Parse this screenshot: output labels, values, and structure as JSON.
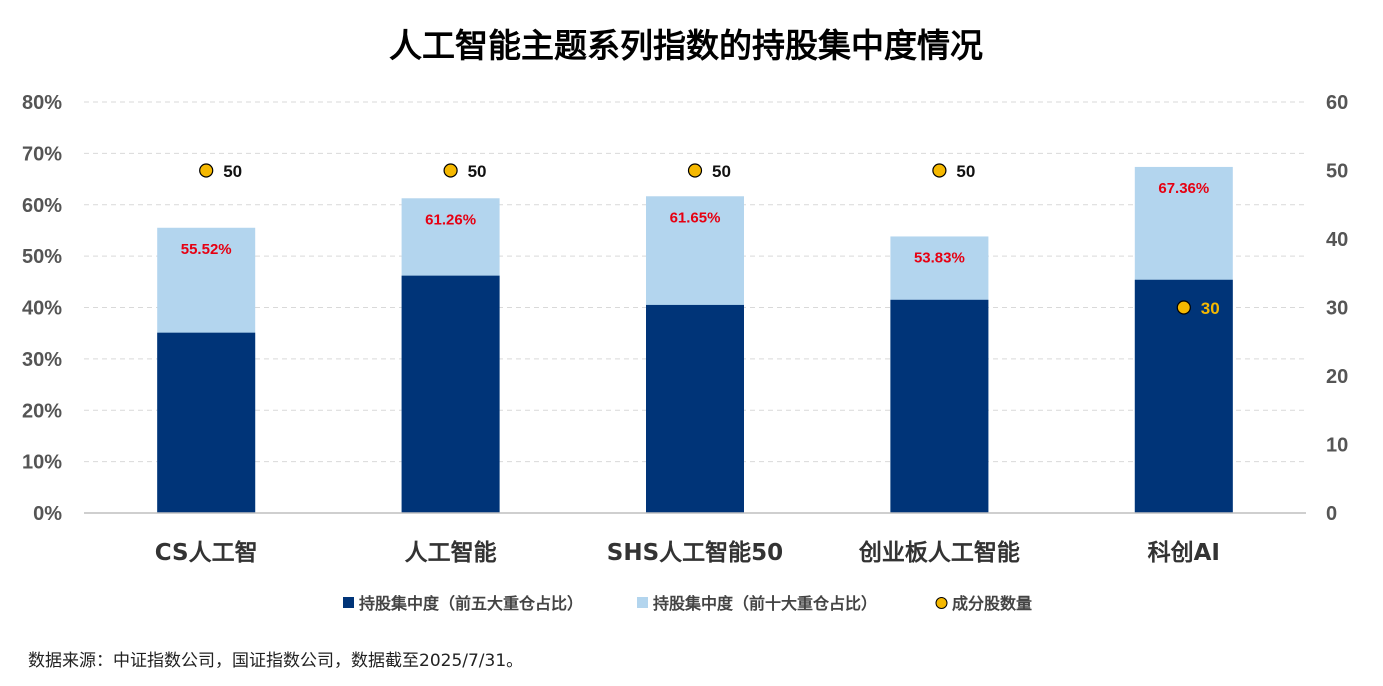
{
  "chart_data": {
    "type": "bar",
    "stacked": false,
    "title": "人工智能主题系列指数的持股集中度情况",
    "categories": [
      "CS人工智",
      "人工智能",
      "SHS人工智能50",
      "创业板人工智能",
      "科创AI"
    ],
    "series": [
      {
        "name": "持股集中度（前五大重仓占比）",
        "axis": "left",
        "color": "#003478",
        "values": [
          35.1,
          46.2,
          40.5,
          41.5,
          45.4
        ]
      },
      {
        "name": "持股集中度（前十大重仓占比）",
        "axis": "left",
        "color": "#b3d5ee",
        "values": [
          55.52,
          61.26,
          61.65,
          53.83,
          67.36
        ],
        "labels": [
          "55.52%",
          "61.26%",
          "61.65%",
          "53.83%",
          "67.36%"
        ]
      },
      {
        "name": "成分股数量",
        "axis": "right",
        "type": "scatter",
        "color": "#f5b800",
        "values": [
          50,
          50,
          50,
          50,
          30
        ],
        "labels": [
          "50",
          "50",
          "50",
          "50",
          "30"
        ]
      }
    ],
    "y_left": {
      "min": 0,
      "max": 80,
      "step": 10,
      "tick_labels": [
        "0%",
        "10%",
        "20%",
        "30%",
        "40%",
        "50%",
        "60%",
        "70%",
        "80%"
      ]
    },
    "y_right": {
      "min": 0,
      "max": 60,
      "step": 10,
      "tick_labels": [
        "0",
        "10",
        "20",
        "30",
        "40",
        "50",
        "60"
      ]
    },
    "grid": true,
    "legend_position": "bottom"
  },
  "source_note": "数据来源：中证指数公司，国证指数公司，数据截至2025/7/31。"
}
